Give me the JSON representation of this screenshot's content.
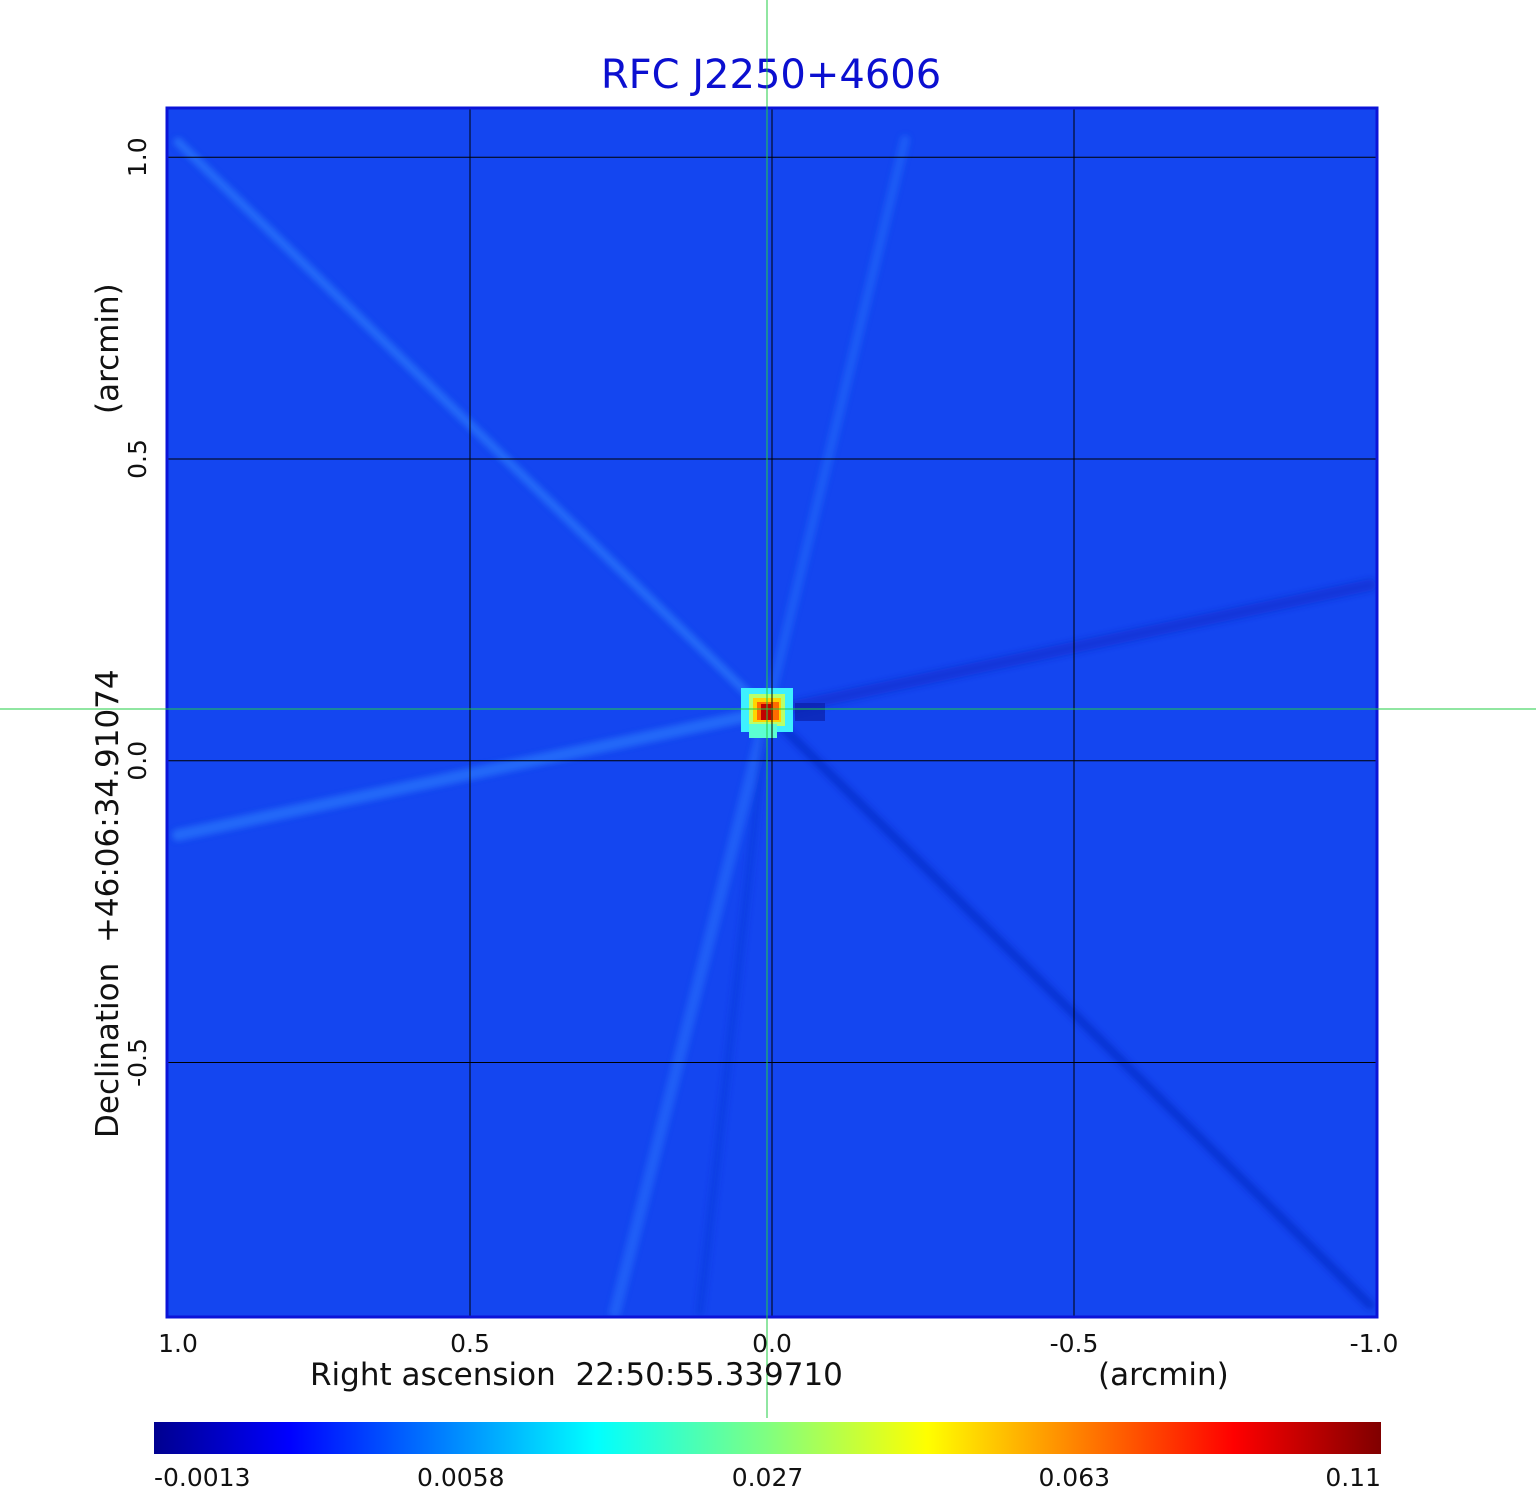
{
  "chart_data": {
    "type": "heatmap",
    "title": "RFC J2250+4606",
    "xlabel": "Right ascension  22:50:55.339710",
    "xunit": "(arcmin)",
    "ylabel": "Declination  +46:06:34.91074",
    "yunit": "(arcmin)",
    "x_range": [
      1.0,
      -1.0
    ],
    "y_range": [
      -0.92,
      1.08
    ],
    "x_ticks": [
      {
        "value": 1.0,
        "label": "1.0"
      },
      {
        "value": 0.5,
        "label": "0.5"
      },
      {
        "value": 0.0,
        "label": "0.0"
      },
      {
        "value": -0.5,
        "label": "-0.5"
      },
      {
        "value": -1.0,
        "label": "-1.0"
      }
    ],
    "y_ticks": [
      {
        "value": 1.0,
        "label": "1.0"
      },
      {
        "value": 0.5,
        "label": "0.5"
      },
      {
        "value": 0.0,
        "label": "0.0"
      },
      {
        "value": -0.5,
        "label": "-0.5"
      }
    ],
    "grid": true,
    "crosshair": {
      "x": 0.0,
      "y": 0.085
    },
    "source_peak": {
      "x": 0.0,
      "y": 0.08,
      "value": 0.11
    },
    "background_level": 0.0,
    "colorbar": {
      "colormap": "jet",
      "ticks": [
        "-0.0013",
        "0.0058",
        "0.027",
        "0.063",
        "0.11"
      ]
    },
    "colors": {
      "title": "#0b0fd0",
      "frame": "#0b14d8",
      "grid": "#000000",
      "crosshair": "#22cc44",
      "background": "#1446f0"
    }
  }
}
